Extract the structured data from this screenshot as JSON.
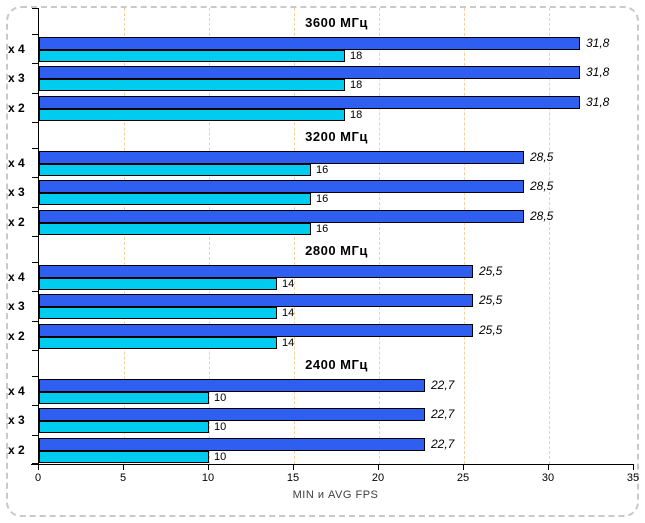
{
  "chart_data": {
    "type": "bar",
    "orientation": "horizontal",
    "xlabel": "MIN и AVG FPS",
    "xlim": [
      0,
      35
    ],
    "xticks": [
      0,
      5,
      10,
      15,
      20,
      25,
      30,
      35
    ],
    "gridlines_x": [
      5,
      10,
      15,
      20,
      25,
      30
    ],
    "grid_on": true,
    "legend": "none",
    "series_roles": [
      "AVG FPS",
      "MIN FPS"
    ],
    "colors": {
      "avg_bar": "#2e5ff0",
      "min_bar": "#00ccf0",
      "bar_border": "#000000",
      "gridline": "#f7cf9d",
      "axis": "#000000",
      "frame_border": "#c9c9c9",
      "axis_label_text": "#3f3f3f"
    },
    "groups": [
      {
        "title": "3600 МГц",
        "rows": [
          {
            "label": "x 4",
            "avg": 31.8,
            "avg_label": "31,8",
            "min": 18,
            "min_label": "18"
          },
          {
            "label": "x 3",
            "avg": 31.8,
            "avg_label": "31,8",
            "min": 18,
            "min_label": "18"
          },
          {
            "label": "x 2",
            "avg": 31.8,
            "avg_label": "31,8",
            "min": 18,
            "min_label": "18"
          }
        ]
      },
      {
        "title": "3200 МГц",
        "rows": [
          {
            "label": "x 4",
            "avg": 28.5,
            "avg_label": "28,5",
            "min": 16,
            "min_label": "16"
          },
          {
            "label": "x 3",
            "avg": 28.5,
            "avg_label": "28,5",
            "min": 16,
            "min_label": "16"
          },
          {
            "label": "x 2",
            "avg": 28.5,
            "avg_label": "28,5",
            "min": 16,
            "min_label": "16"
          }
        ]
      },
      {
        "title": "2800 МГц",
        "rows": [
          {
            "label": "x 4",
            "avg": 25.5,
            "avg_label": "25,5",
            "min": 14,
            "min_label": "14"
          },
          {
            "label": "x 3",
            "avg": 25.5,
            "avg_label": "25,5",
            "min": 14,
            "min_label": "14"
          },
          {
            "label": "x 2",
            "avg": 25.5,
            "avg_label": "25,5",
            "min": 14,
            "min_label": "14"
          }
        ]
      },
      {
        "title": "2400 МГц",
        "rows": [
          {
            "label": "x 4",
            "avg": 22.7,
            "avg_label": "22,7",
            "min": 10,
            "min_label": "10"
          },
          {
            "label": "x 3",
            "avg": 22.7,
            "avg_label": "22,7",
            "min": 10,
            "min_label": "10"
          },
          {
            "label": "x 2",
            "avg": 22.7,
            "avg_label": "22,7",
            "min": 10,
            "min_label": "10"
          }
        ]
      }
    ]
  }
}
